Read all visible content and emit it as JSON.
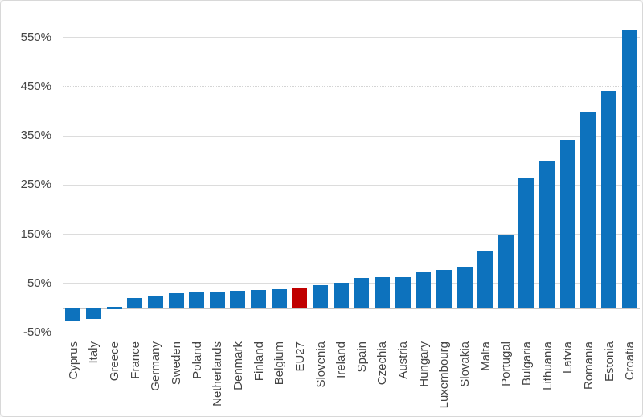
{
  "chart_data": {
    "type": "bar",
    "title": "",
    "xlabel": "",
    "ylabel": "",
    "unit": "%",
    "categories": [
      "Cyprus",
      "Italy",
      "Greece",
      "France",
      "Germany",
      "Sweden",
      "Poland",
      "Netherlands",
      "Denmark",
      "Finland",
      "Belgium",
      "EU27",
      "Slovenia",
      "Ireland",
      "Spain",
      "Czechia",
      "Austria",
      "Hungary",
      "Luxembourg",
      "Slovakia",
      "Malta",
      "Portugal",
      "Bulgaria",
      "Lithuania",
      "Latvia",
      "Romania",
      "Estonia",
      "Croatia"
    ],
    "values": [
      -26,
      -23,
      3,
      21,
      23,
      30,
      32,
      33,
      35,
      36,
      38,
      41,
      47,
      52,
      61,
      62,
      62,
      74,
      78,
      84,
      115,
      148,
      263,
      298,
      342,
      397,
      441,
      565
    ],
    "highlight_category": "EU27",
    "ylim": [
      -50,
      600
    ],
    "yticks": [
      {
        "value": 550,
        "label": "550%",
        "style": "solid"
      },
      {
        "value": 450,
        "label": "450%",
        "style": "dotted"
      },
      {
        "value": 350,
        "label": "350%",
        "style": "solid"
      },
      {
        "value": 250,
        "label": "250%",
        "style": "solid"
      },
      {
        "value": 150,
        "label": "150%",
        "style": "solid"
      },
      {
        "value": 50,
        "label": "50%",
        "style": "solid"
      },
      {
        "value": -50,
        "label": "-50%",
        "style": "solid"
      }
    ],
    "grid": true,
    "legend": "none",
    "colors": {
      "bar": "#0d72bd",
      "highlight": "#c00000",
      "gridline": "#dcdcdc",
      "zero_line": "#c6c6c6",
      "tick_text": "#454545",
      "background": "#ffffff",
      "border": "#d8d8d8"
    }
  }
}
